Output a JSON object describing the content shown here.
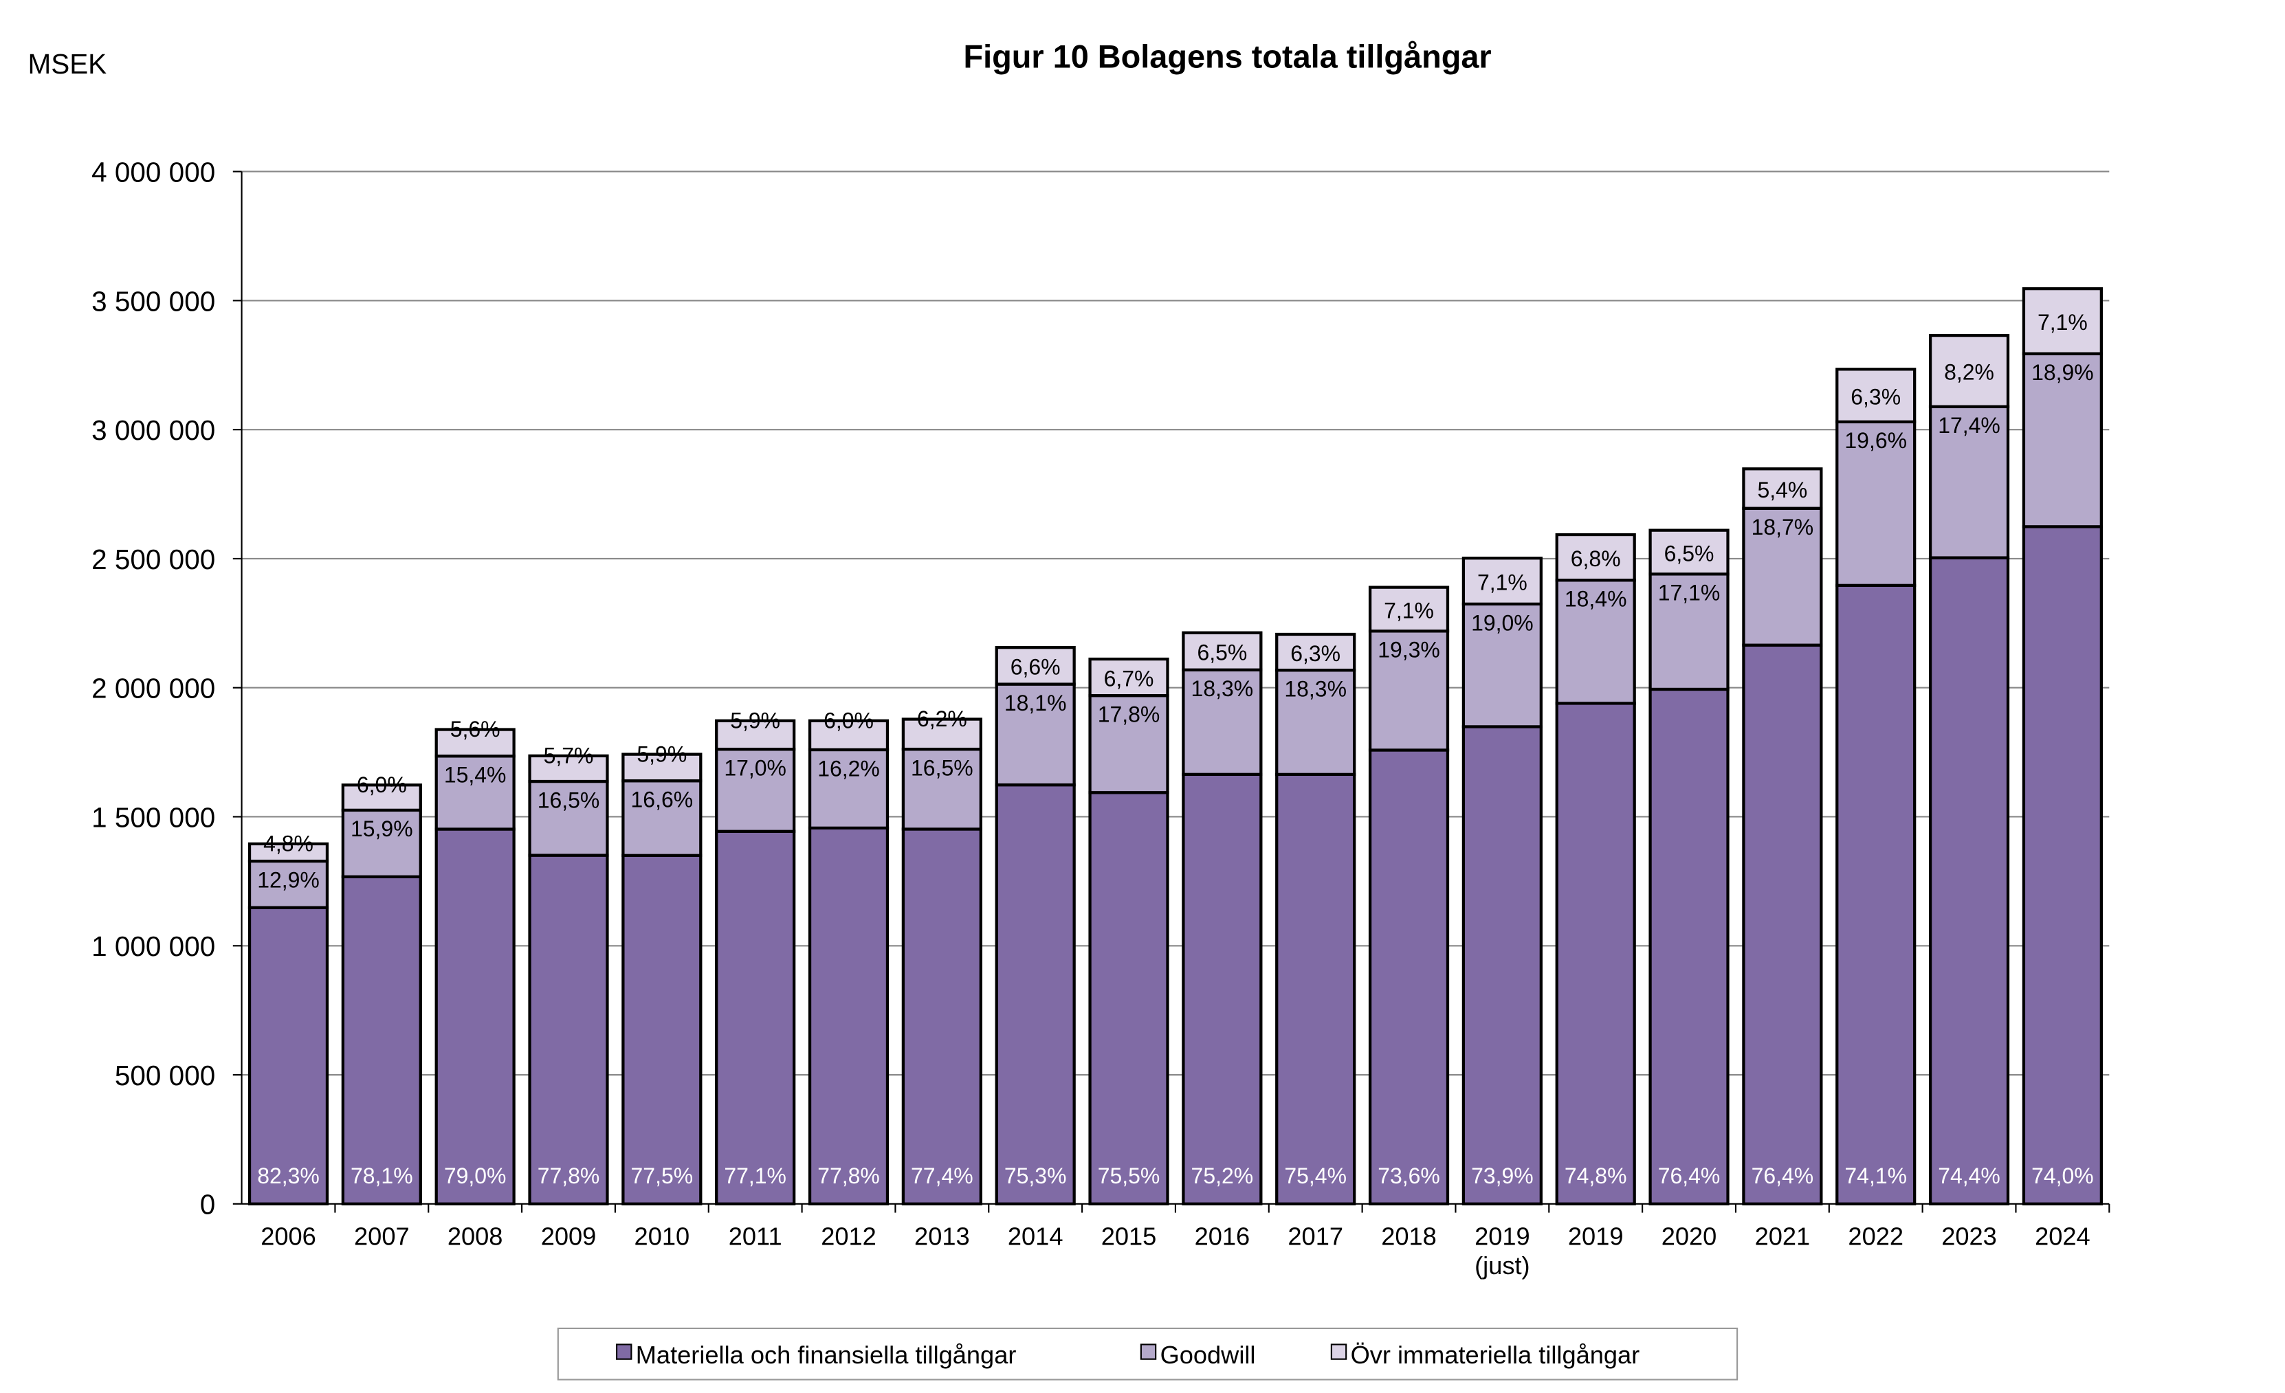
{
  "chart_data": {
    "type": "bar",
    "stacked": true,
    "title": "Figur 10 Bolagens totala tillgångar",
    "ylabel": "MSEK",
    "xlabel": "",
    "ylim": [
      0,
      4000000
    ],
    "yticks": [
      0,
      500000,
      1000000,
      1500000,
      2000000,
      2500000,
      3000000,
      3500000,
      4000000
    ],
    "ytick_labels": [
      "0",
      "500 000",
      "1 000 000",
      "1 500 000",
      "2 000 000",
      "2 500 000",
      "3 000 000",
      "3 500 000",
      "4 000 000"
    ],
    "grid": true,
    "legend_position": "bottom",
    "categories": [
      "2006",
      "2007",
      "2008",
      "2009",
      "2010",
      "2011",
      "2012",
      "2013",
      "2014",
      "2015",
      "2016",
      "2017",
      "2018",
      "2019|(just)",
      "2019",
      "2020",
      "2021",
      "2022",
      "2023",
      "2024"
    ],
    "totals": [
      1395000,
      1623000,
      1838000,
      1736000,
      1742000,
      1872000,
      1872000,
      1878000,
      2156000,
      2111000,
      2213000,
      2207000,
      2389000,
      2502000,
      2593000,
      2610000,
      2848000,
      3234000,
      3365000,
      3546000
    ],
    "series": [
      {
        "name": "Materiella och finansiella tillgångar",
        "color": "#806BA5",
        "labels": [
          "82,3%",
          "78,1%",
          "79,0%",
          "77,8%",
          "77,5%",
          "77,1%",
          "77,8%",
          "77,4%",
          "75,3%",
          "75,5%",
          "75,2%",
          "75,4%",
          "73,6%",
          "73,9%",
          "74,8%",
          "76,4%",
          "76,4%",
          "74,1%",
          "74,4%",
          "74,0%"
        ],
        "share": [
          82.3,
          78.1,
          79.0,
          77.8,
          77.5,
          77.1,
          77.8,
          77.4,
          75.3,
          75.5,
          75.2,
          75.4,
          73.6,
          73.9,
          74.8,
          76.4,
          76.4,
          74.1,
          74.4,
          74.0
        ]
      },
      {
        "name": "Goodwill",
        "color": "#B5AACB",
        "labels": [
          "12,9%",
          "15,9%",
          "15,4%",
          "16,5%",
          "16,6%",
          "17,0%",
          "16,2%",
          "16,5%",
          "18,1%",
          "17,8%",
          "18,3%",
          "18,3%",
          "19,3%",
          "19,0%",
          "18,4%",
          "17,1%",
          "18,7%",
          "19,6%",
          "17,4%",
          "18,9%"
        ],
        "share": [
          12.9,
          15.9,
          15.4,
          16.5,
          16.6,
          17.0,
          16.2,
          16.5,
          18.1,
          17.8,
          18.3,
          18.3,
          19.3,
          19.0,
          18.4,
          17.1,
          18.7,
          19.6,
          17.4,
          18.9
        ]
      },
      {
        "name": "Övr immateriella tillgångar",
        "color": "#DCD4E6",
        "labels": [
          "4,8%",
          "6,0%",
          "5,6%",
          "5,7%",
          "5,9%",
          "5,9%",
          "6,0%",
          "6,2%",
          "6,6%",
          "6,7%",
          "6,5%",
          "6,3%",
          "7,1%",
          "7,1%",
          "6,8%",
          "6,5%",
          "5,4%",
          "6,3%",
          "8,2%",
          "7,1%"
        ],
        "share": [
          4.8,
          6.0,
          5.6,
          5.7,
          5.9,
          5.9,
          6.0,
          6.2,
          6.6,
          6.7,
          6.5,
          6.3,
          7.1,
          7.1,
          6.8,
          6.5,
          5.4,
          6.3,
          8.2,
          7.1
        ]
      }
    ]
  }
}
